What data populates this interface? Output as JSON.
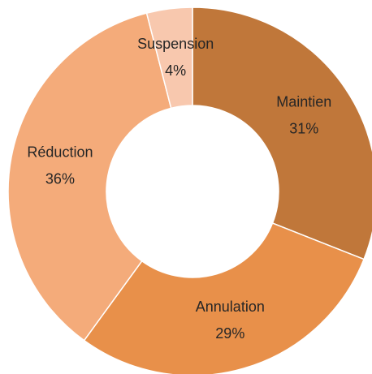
{
  "chart_data": {
    "type": "donut",
    "categories": [
      "Maintien",
      "Annulation",
      "Réduction",
      "Suspension"
    ],
    "values": [
      31,
      29,
      36,
      4
    ],
    "value_labels": [
      "31%",
      "29%",
      "36%",
      "4%"
    ],
    "colors": [
      "#c0773a",
      "#e8904a",
      "#f4ab7a",
      "#f8c8ae"
    ]
  }
}
